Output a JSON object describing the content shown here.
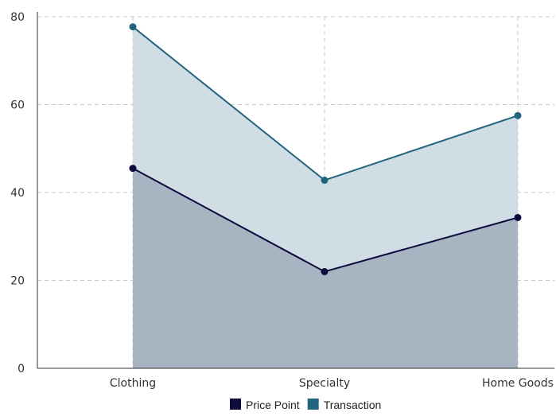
{
  "chart_data": {
    "type": "area",
    "categories": [
      "Clothing",
      "Specialty",
      "Home Goods"
    ],
    "series": [
      {
        "name": "Price Point",
        "values": [
          45.5,
          22,
          34.3
        ],
        "color": "#0d0b3d",
        "fill": "#a7b4c2"
      },
      {
        "name": "Transaction",
        "values": [
          77.7,
          42.8,
          57.5
        ],
        "color": "#20647d",
        "fill": "#d1dde4"
      }
    ],
    "ylim": [
      0,
      80
    ],
    "yticks": [
      "0",
      "20",
      "40",
      "60",
      "80"
    ],
    "grid": true,
    "legend_position": "bottom-center",
    "title": "",
    "xlabel": "",
    "ylabel": ""
  }
}
